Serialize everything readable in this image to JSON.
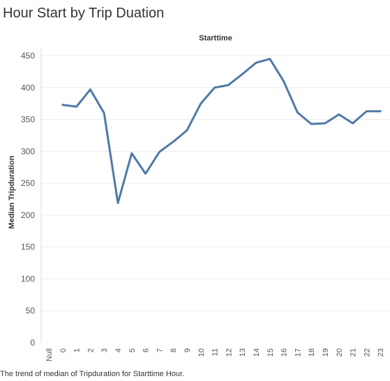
{
  "page": {
    "title": "Hour Start by Trip Duation",
    "caption": "The trend of median of Tripduration for Starttime Hour."
  },
  "chart_data": {
    "type": "line",
    "title": "Hour Start by Trip Duation",
    "xlabel": "Starttime",
    "ylabel": "Median Tripduration",
    "categories": [
      "Null",
      "0",
      "1",
      "2",
      "3",
      "4",
      "5",
      "6",
      "7",
      "8",
      "9",
      "10",
      "11",
      "12",
      "13",
      "14",
      "15",
      "16",
      "17",
      "18",
      "19",
      "20",
      "21",
      "22",
      "23"
    ],
    "series": [
      {
        "values": [
          null,
          373,
          370,
          397,
          360,
          219,
          297,
          265,
          299,
          315,
          333,
          375,
          400,
          404,
          421,
          439,
          445,
          410,
          361,
          343,
          344,
          358,
          344,
          363,
          363
        ]
      }
    ],
    "ylim": [
      0,
      460
    ],
    "yticks": [
      0,
      50,
      100,
      150,
      200,
      250,
      300,
      350,
      400,
      450
    ],
    "grid": true,
    "line_color": "#4e79a7"
  }
}
